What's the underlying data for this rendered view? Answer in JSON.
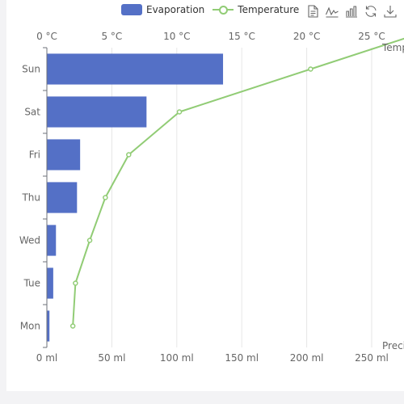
{
  "legend": {
    "evaporation": "Evaporation",
    "temperature": "Temperature"
  },
  "toolbox": [
    "data-view-icon",
    "line-chart-icon",
    "bar-chart-icon",
    "restore-icon",
    "save-image-icon"
  ],
  "colors": {
    "bar": "#5470c6",
    "line": "#91cc75",
    "grid": "#e6e6e6",
    "axis": "#6e7079"
  },
  "chart_data": {
    "type": "bar",
    "categories": [
      "Mon",
      "Tue",
      "Wed",
      "Thu",
      "Fri",
      "Sat",
      "Sun"
    ],
    "series": [
      {
        "name": "Evaporation",
        "type": "bar",
        "values": [
          2.0,
          4.9,
          7.0,
          23.2,
          25.6,
          76.7,
          135.6
        ]
      },
      {
        "name": "Temperature",
        "type": "line",
        "values": [
          2.0,
          2.2,
          3.3,
          4.5,
          6.3,
          10.2,
          20.3
        ]
      }
    ],
    "x_bottom": {
      "name": "Precipitation",
      "min": 0,
      "max": 250,
      "ticks": [
        "0 ml",
        "50 ml",
        "100 ml",
        "150 ml",
        "200 ml",
        "250 ml"
      ]
    },
    "x_top": {
      "name": "Temperature",
      "min": 0,
      "max": 25,
      "ticks": [
        "0 °C",
        "5 °C",
        "10 °C",
        "15 °C",
        "20 °C",
        "25 °C"
      ]
    },
    "grid": true,
    "legend_position": "top"
  }
}
